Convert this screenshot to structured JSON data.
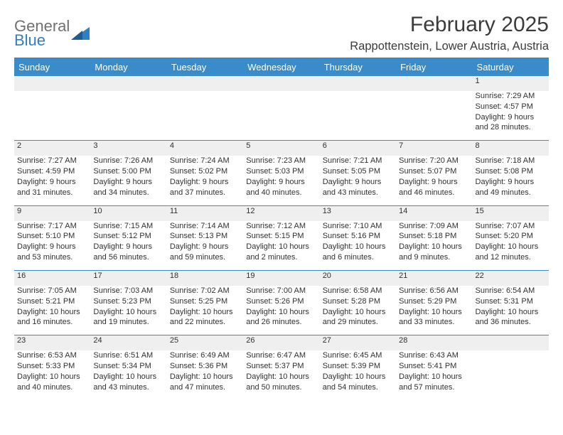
{
  "logo": {
    "word1": "General",
    "word2": "Blue",
    "word1_color": "#707070",
    "word2_color": "#2f7fc2",
    "triangle_color": "#2f7fc2"
  },
  "title": "February 2025",
  "location": "Rappottenstein, Lower Austria, Austria",
  "header_bg": "#3a8bca",
  "header_fg": "#ffffff",
  "daynum_bg": "#efefef",
  "rule_color": "#2f7fc2",
  "text_color": "#303030",
  "fontsize_title": 30,
  "fontsize_location": 16.5,
  "fontsize_header": 13,
  "fontsize_daynum": 12,
  "fontsize_body": 11,
  "days_of_week": [
    "Sunday",
    "Monday",
    "Tuesday",
    "Wednesday",
    "Thursday",
    "Friday",
    "Saturday"
  ],
  "weeks": [
    {
      "nums": [
        "",
        "",
        "",
        "",
        "",
        "",
        "1"
      ],
      "info": [
        {
          "sunrise": "",
          "sunset": "",
          "dl1": "",
          "dl2": ""
        },
        {
          "sunrise": "",
          "sunset": "",
          "dl1": "",
          "dl2": ""
        },
        {
          "sunrise": "",
          "sunset": "",
          "dl1": "",
          "dl2": ""
        },
        {
          "sunrise": "",
          "sunset": "",
          "dl1": "",
          "dl2": ""
        },
        {
          "sunrise": "",
          "sunset": "",
          "dl1": "",
          "dl2": ""
        },
        {
          "sunrise": "",
          "sunset": "",
          "dl1": "",
          "dl2": ""
        },
        {
          "sunrise": "Sunrise: 7:29 AM",
          "sunset": "Sunset: 4:57 PM",
          "dl1": "Daylight: 9 hours",
          "dl2": "and 28 minutes."
        }
      ]
    },
    {
      "nums": [
        "2",
        "3",
        "4",
        "5",
        "6",
        "7",
        "8"
      ],
      "info": [
        {
          "sunrise": "Sunrise: 7:27 AM",
          "sunset": "Sunset: 4:59 PM",
          "dl1": "Daylight: 9 hours",
          "dl2": "and 31 minutes."
        },
        {
          "sunrise": "Sunrise: 7:26 AM",
          "sunset": "Sunset: 5:00 PM",
          "dl1": "Daylight: 9 hours",
          "dl2": "and 34 minutes."
        },
        {
          "sunrise": "Sunrise: 7:24 AM",
          "sunset": "Sunset: 5:02 PM",
          "dl1": "Daylight: 9 hours",
          "dl2": "and 37 minutes."
        },
        {
          "sunrise": "Sunrise: 7:23 AM",
          "sunset": "Sunset: 5:03 PM",
          "dl1": "Daylight: 9 hours",
          "dl2": "and 40 minutes."
        },
        {
          "sunrise": "Sunrise: 7:21 AM",
          "sunset": "Sunset: 5:05 PM",
          "dl1": "Daylight: 9 hours",
          "dl2": "and 43 minutes."
        },
        {
          "sunrise": "Sunrise: 7:20 AM",
          "sunset": "Sunset: 5:07 PM",
          "dl1": "Daylight: 9 hours",
          "dl2": "and 46 minutes."
        },
        {
          "sunrise": "Sunrise: 7:18 AM",
          "sunset": "Sunset: 5:08 PM",
          "dl1": "Daylight: 9 hours",
          "dl2": "and 49 minutes."
        }
      ]
    },
    {
      "nums": [
        "9",
        "10",
        "11",
        "12",
        "13",
        "14",
        "15"
      ],
      "info": [
        {
          "sunrise": "Sunrise: 7:17 AM",
          "sunset": "Sunset: 5:10 PM",
          "dl1": "Daylight: 9 hours",
          "dl2": "and 53 minutes."
        },
        {
          "sunrise": "Sunrise: 7:15 AM",
          "sunset": "Sunset: 5:12 PM",
          "dl1": "Daylight: 9 hours",
          "dl2": "and 56 minutes."
        },
        {
          "sunrise": "Sunrise: 7:14 AM",
          "sunset": "Sunset: 5:13 PM",
          "dl1": "Daylight: 9 hours",
          "dl2": "and 59 minutes."
        },
        {
          "sunrise": "Sunrise: 7:12 AM",
          "sunset": "Sunset: 5:15 PM",
          "dl1": "Daylight: 10 hours",
          "dl2": "and 2 minutes."
        },
        {
          "sunrise": "Sunrise: 7:10 AM",
          "sunset": "Sunset: 5:16 PM",
          "dl1": "Daylight: 10 hours",
          "dl2": "and 6 minutes."
        },
        {
          "sunrise": "Sunrise: 7:09 AM",
          "sunset": "Sunset: 5:18 PM",
          "dl1": "Daylight: 10 hours",
          "dl2": "and 9 minutes."
        },
        {
          "sunrise": "Sunrise: 7:07 AM",
          "sunset": "Sunset: 5:20 PM",
          "dl1": "Daylight: 10 hours",
          "dl2": "and 12 minutes."
        }
      ]
    },
    {
      "nums": [
        "16",
        "17",
        "18",
        "19",
        "20",
        "21",
        "22"
      ],
      "info": [
        {
          "sunrise": "Sunrise: 7:05 AM",
          "sunset": "Sunset: 5:21 PM",
          "dl1": "Daylight: 10 hours",
          "dl2": "and 16 minutes."
        },
        {
          "sunrise": "Sunrise: 7:03 AM",
          "sunset": "Sunset: 5:23 PM",
          "dl1": "Daylight: 10 hours",
          "dl2": "and 19 minutes."
        },
        {
          "sunrise": "Sunrise: 7:02 AM",
          "sunset": "Sunset: 5:25 PM",
          "dl1": "Daylight: 10 hours",
          "dl2": "and 22 minutes."
        },
        {
          "sunrise": "Sunrise: 7:00 AM",
          "sunset": "Sunset: 5:26 PM",
          "dl1": "Daylight: 10 hours",
          "dl2": "and 26 minutes."
        },
        {
          "sunrise": "Sunrise: 6:58 AM",
          "sunset": "Sunset: 5:28 PM",
          "dl1": "Daylight: 10 hours",
          "dl2": "and 29 minutes."
        },
        {
          "sunrise": "Sunrise: 6:56 AM",
          "sunset": "Sunset: 5:29 PM",
          "dl1": "Daylight: 10 hours",
          "dl2": "and 33 minutes."
        },
        {
          "sunrise": "Sunrise: 6:54 AM",
          "sunset": "Sunset: 5:31 PM",
          "dl1": "Daylight: 10 hours",
          "dl2": "and 36 minutes."
        }
      ]
    },
    {
      "nums": [
        "23",
        "24",
        "25",
        "26",
        "27",
        "28",
        ""
      ],
      "info": [
        {
          "sunrise": "Sunrise: 6:53 AM",
          "sunset": "Sunset: 5:33 PM",
          "dl1": "Daylight: 10 hours",
          "dl2": "and 40 minutes."
        },
        {
          "sunrise": "Sunrise: 6:51 AM",
          "sunset": "Sunset: 5:34 PM",
          "dl1": "Daylight: 10 hours",
          "dl2": "and 43 minutes."
        },
        {
          "sunrise": "Sunrise: 6:49 AM",
          "sunset": "Sunset: 5:36 PM",
          "dl1": "Daylight: 10 hours",
          "dl2": "and 47 minutes."
        },
        {
          "sunrise": "Sunrise: 6:47 AM",
          "sunset": "Sunset: 5:37 PM",
          "dl1": "Daylight: 10 hours",
          "dl2": "and 50 minutes."
        },
        {
          "sunrise": "Sunrise: 6:45 AM",
          "sunset": "Sunset: 5:39 PM",
          "dl1": "Daylight: 10 hours",
          "dl2": "and 54 minutes."
        },
        {
          "sunrise": "Sunrise: 6:43 AM",
          "sunset": "Sunset: 5:41 PM",
          "dl1": "Daylight: 10 hours",
          "dl2": "and 57 minutes."
        },
        {
          "sunrise": "",
          "sunset": "",
          "dl1": "",
          "dl2": ""
        }
      ]
    }
  ]
}
